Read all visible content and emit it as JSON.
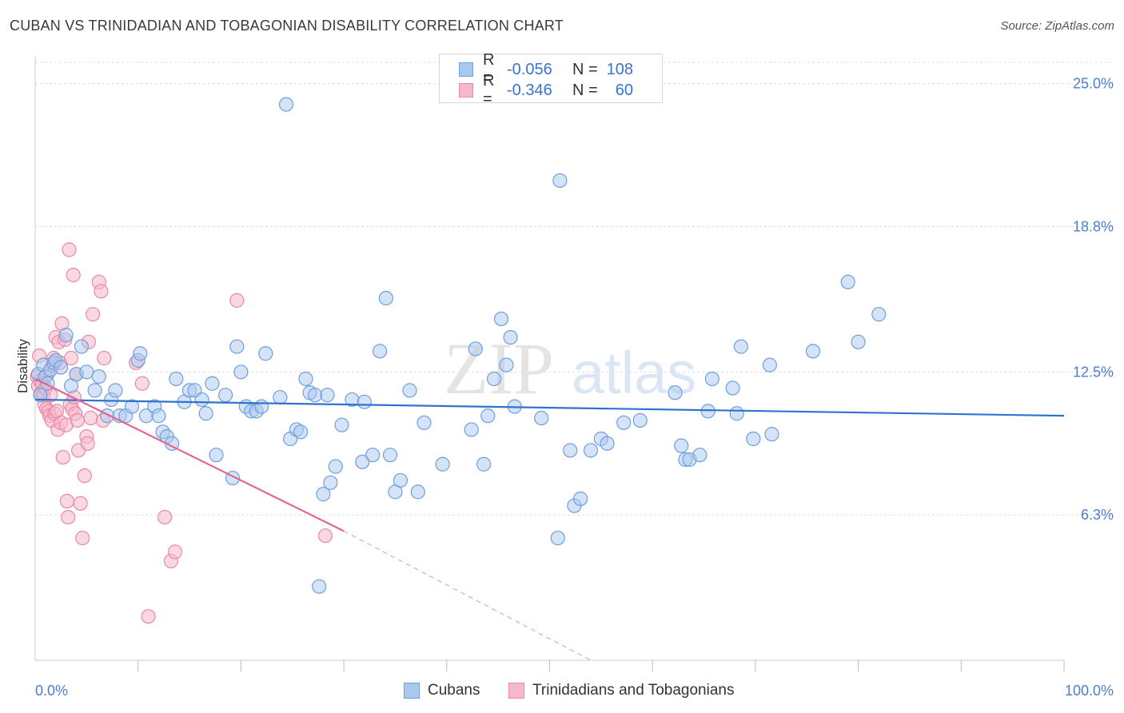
{
  "title": "CUBAN VS TRINIDADIAN AND TOBAGONIAN DISABILITY CORRELATION CHART",
  "source": "Source: ZipAtlas.com",
  "colors": {
    "blue_fill": "#a9c8f0",
    "blue_stroke": "#6f9fdc",
    "blue_line": "#2f73d0",
    "pink_fill": "#f5b8cb",
    "pink_stroke": "#eb88a8",
    "pink_line": "#e26690",
    "tick_text": "#4a7fd0",
    "grid": "#dddddd"
  },
  "legend": {
    "rows": [
      {
        "r_label": "R =",
        "r_value": "-0.056",
        "n_label": "N =",
        "n_value": "108"
      },
      {
        "r_label": "R =",
        "r_value": "-0.346",
        "n_label": "N =",
        "n_value": "60"
      }
    ]
  },
  "bottom_legend": {
    "cubans": "Cubans",
    "trinidadians": "Trinidadians and Tobagonians"
  },
  "chart_data": {
    "type": "scatter",
    "title": "CUBAN VS TRINIDADIAN AND TOBAGONIAN DISABILITY CORRELATION CHART",
    "xlabel": "",
    "ylabel": "Disability",
    "xlim": [
      0,
      100
    ],
    "ylim": [
      0,
      26.2
    ],
    "x_tick_labels": [
      "0.0%",
      "100.0%"
    ],
    "y_ticks": [
      6.3,
      12.5,
      18.8,
      25.0
    ],
    "y_tick_labels": [
      "6.3%",
      "12.5%",
      "18.8%",
      "25.0%"
    ],
    "grid": true,
    "series": [
      {
        "name": "Cubans",
        "R": -0.056,
        "N": 108,
        "trend": {
          "x0": 0,
          "y0": 11.3,
          "x1": 100,
          "y1": 10.6
        },
        "points": [
          [
            0.3,
            12.4
          ],
          [
            0.5,
            11.5
          ],
          [
            0.8,
            12.8
          ],
          [
            1.0,
            12.3
          ],
          [
            1.2,
            12.0
          ],
          [
            1.5,
            12.6
          ],
          [
            1.8,
            12.9
          ],
          [
            2.0,
            13.0
          ],
          [
            2.5,
            12.7
          ],
          [
            3.0,
            14.1
          ],
          [
            3.5,
            11.9
          ],
          [
            4.0,
            12.4
          ],
          [
            4.5,
            13.6
          ],
          [
            5.0,
            12.5
          ],
          [
            5.8,
            11.7
          ],
          [
            6.2,
            12.3
          ],
          [
            7.0,
            10.6
          ],
          [
            7.4,
            11.3
          ],
          [
            7.8,
            11.7
          ],
          [
            8.2,
            10.6
          ],
          [
            8.8,
            10.6
          ],
          [
            9.4,
            11.0
          ],
          [
            10.0,
            13.0
          ],
          [
            10.2,
            13.3
          ],
          [
            10.8,
            10.6
          ],
          [
            11.6,
            11.0
          ],
          [
            12.0,
            10.6
          ],
          [
            12.4,
            9.9
          ],
          [
            12.8,
            9.7
          ],
          [
            13.3,
            9.4
          ],
          [
            13.7,
            12.2
          ],
          [
            14.5,
            11.2
          ],
          [
            15.0,
            11.7
          ],
          [
            15.5,
            11.7
          ],
          [
            16.2,
            11.3
          ],
          [
            16.6,
            10.7
          ],
          [
            17.2,
            12.0
          ],
          [
            17.6,
            8.9
          ],
          [
            18.5,
            11.5
          ],
          [
            19.2,
            7.9
          ],
          [
            19.6,
            13.6
          ],
          [
            20.0,
            12.5
          ],
          [
            20.5,
            11.0
          ],
          [
            21.0,
            10.8
          ],
          [
            21.5,
            10.8
          ],
          [
            22.0,
            11.0
          ],
          [
            22.4,
            13.3
          ],
          [
            23.8,
            11.4
          ],
          [
            24.4,
            24.1
          ],
          [
            24.8,
            9.6
          ],
          [
            25.4,
            10.0
          ],
          [
            25.8,
            9.9
          ],
          [
            26.3,
            12.2
          ],
          [
            26.7,
            11.6
          ],
          [
            27.2,
            11.5
          ],
          [
            27.6,
            3.2
          ],
          [
            28.0,
            7.2
          ],
          [
            28.4,
            11.5
          ],
          [
            28.7,
            7.7
          ],
          [
            29.2,
            8.4
          ],
          [
            29.8,
            10.2
          ],
          [
            30.8,
            11.3
          ],
          [
            31.8,
            8.6
          ],
          [
            32.0,
            11.2
          ],
          [
            32.8,
            8.9
          ],
          [
            33.5,
            13.4
          ],
          [
            34.1,
            15.7
          ],
          [
            34.5,
            8.9
          ],
          [
            35.0,
            7.3
          ],
          [
            35.5,
            7.8
          ],
          [
            36.4,
            11.7
          ],
          [
            37.2,
            7.3
          ],
          [
            37.8,
            10.3
          ],
          [
            39.6,
            8.5
          ],
          [
            42.4,
            10.0
          ],
          [
            42.8,
            13.5
          ],
          [
            43.6,
            8.5
          ],
          [
            44.0,
            10.6
          ],
          [
            44.6,
            12.2
          ],
          [
            45.3,
            14.8
          ],
          [
            45.8,
            12.8
          ],
          [
            46.2,
            14.0
          ],
          [
            46.6,
            11.0
          ],
          [
            49.2,
            10.5
          ],
          [
            50.8,
            5.3
          ],
          [
            51.0,
            20.8
          ],
          [
            52.0,
            9.1
          ],
          [
            52.4,
            6.7
          ],
          [
            53.0,
            7.0
          ],
          [
            54.0,
            9.1
          ],
          [
            55.0,
            9.6
          ],
          [
            55.6,
            9.4
          ],
          [
            57.2,
            10.3
          ],
          [
            58.8,
            10.4
          ],
          [
            62.2,
            11.6
          ],
          [
            62.8,
            9.3
          ],
          [
            63.2,
            8.7
          ],
          [
            63.6,
            8.7
          ],
          [
            64.6,
            8.9
          ],
          [
            65.4,
            10.8
          ],
          [
            65.8,
            12.2
          ],
          [
            67.8,
            11.8
          ],
          [
            68.2,
            10.7
          ],
          [
            68.6,
            13.6
          ],
          [
            69.8,
            9.6
          ],
          [
            71.4,
            12.8
          ],
          [
            71.6,
            9.8
          ],
          [
            75.6,
            13.4
          ],
          [
            79.0,
            16.4
          ],
          [
            80.0,
            13.8
          ],
          [
            82.0,
            15.0
          ]
        ]
      },
      {
        "name": "Trinidadians and Tobagonians",
        "R": -0.346,
        "N": 60,
        "trend": {
          "x0": 0,
          "y0": 12.2,
          "x1": 30,
          "y1": 5.6,
          "dash_x1": 54,
          "dash_y1": 0
        },
        "points": [
          [
            0.2,
            12.3
          ],
          [
            0.3,
            11.9
          ],
          [
            0.4,
            13.2
          ],
          [
            0.5,
            12.1
          ],
          [
            0.6,
            11.6
          ],
          [
            0.7,
            12.0
          ],
          [
            0.8,
            11.5
          ],
          [
            0.9,
            11.1
          ],
          [
            1.0,
            11.8
          ],
          [
            1.1,
            10.9
          ],
          [
            1.2,
            12.4
          ],
          [
            1.3,
            10.8
          ],
          [
            1.4,
            10.6
          ],
          [
            1.5,
            11.5
          ],
          [
            1.6,
            10.4
          ],
          [
            1.7,
            12.8
          ],
          [
            1.8,
            13.1
          ],
          [
            1.9,
            10.7
          ],
          [
            2.0,
            14.0
          ],
          [
            2.1,
            10.8
          ],
          [
            2.2,
            10.0
          ],
          [
            2.3,
            13.8
          ],
          [
            2.4,
            12.9
          ],
          [
            2.5,
            10.3
          ],
          [
            2.6,
            14.6
          ],
          [
            2.7,
            8.8
          ],
          [
            2.9,
            13.9
          ],
          [
            3.0,
            10.2
          ],
          [
            3.1,
            6.9
          ],
          [
            3.2,
            6.2
          ],
          [
            3.3,
            17.8
          ],
          [
            3.4,
            11.1
          ],
          [
            3.5,
            13.1
          ],
          [
            3.6,
            10.9
          ],
          [
            3.7,
            16.7
          ],
          [
            3.8,
            11.4
          ],
          [
            3.9,
            10.7
          ],
          [
            4.0,
            12.4
          ],
          [
            4.1,
            10.4
          ],
          [
            4.2,
            9.1
          ],
          [
            4.4,
            6.8
          ],
          [
            4.6,
            5.3
          ],
          [
            4.8,
            8.0
          ],
          [
            5.0,
            9.7
          ],
          [
            5.1,
            9.4
          ],
          [
            5.2,
            13.8
          ],
          [
            5.4,
            10.5
          ],
          [
            5.6,
            15.0
          ],
          [
            6.2,
            16.4
          ],
          [
            6.4,
            16.0
          ],
          [
            6.6,
            10.4
          ],
          [
            6.7,
            13.1
          ],
          [
            9.8,
            12.9
          ],
          [
            10.4,
            12.0
          ],
          [
            11.0,
            1.9
          ],
          [
            12.6,
            6.2
          ],
          [
            13.2,
            4.3
          ],
          [
            13.6,
            4.7
          ],
          [
            19.6,
            15.6
          ],
          [
            28.2,
            5.4
          ]
        ]
      }
    ]
  }
}
